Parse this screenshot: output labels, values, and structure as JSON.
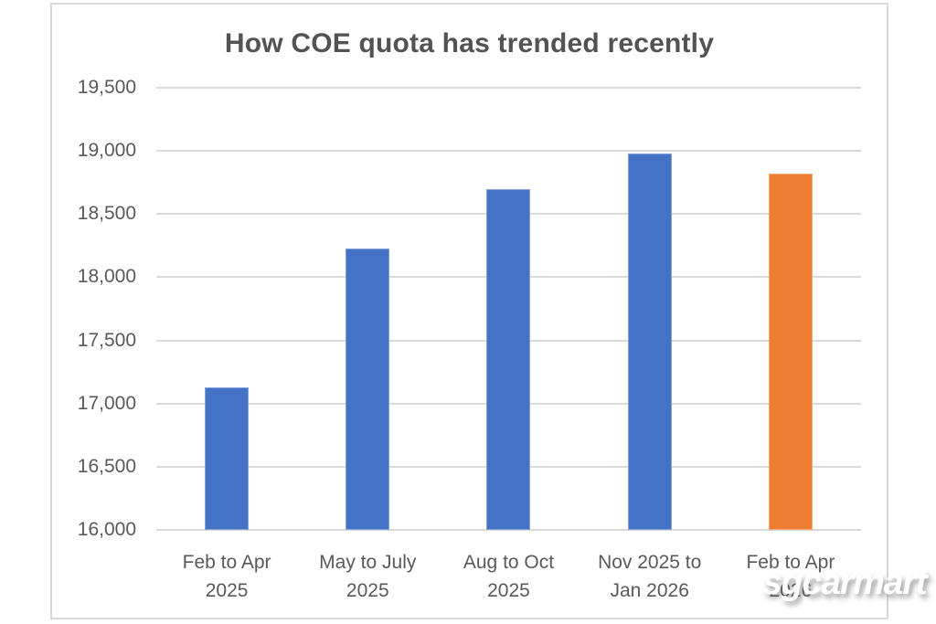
{
  "watermark": {
    "text": "sgcarmart"
  },
  "chart_data": {
    "type": "bar",
    "title": "How COE quota has trended recently",
    "xlabel": "",
    "ylabel": "",
    "ylim": [
      16000,
      19500
    ],
    "grid": true,
    "legend": false,
    "categories": [
      {
        "lines": [
          "Feb to Apr",
          "2025"
        ]
      },
      {
        "lines": [
          "May to July",
          "2025"
        ]
      },
      {
        "lines": [
          "Aug to Oct",
          "2025"
        ]
      },
      {
        "lines": [
          "Nov 2025 to",
          "Jan 2026"
        ]
      },
      {
        "lines": [
          "Feb to Apr",
          "2026"
        ]
      }
    ],
    "values": [
      17130,
      18230,
      18700,
      18980,
      18820
    ],
    "colors": [
      "#4472c4",
      "#4472c4",
      "#4472c4",
      "#4472c4",
      "#ed7d31"
    ],
    "accent_colors": {
      "blue": "#4472c4",
      "orange": "#ed7d31",
      "gridline": "#d9d9d9",
      "text": "#595959"
    },
    "yticks": [
      {
        "value": 19500,
        "label": "19,500"
      },
      {
        "value": 19000,
        "label": "19,000"
      },
      {
        "value": 18500,
        "label": "18,500"
      },
      {
        "value": 18000,
        "label": "18,000"
      },
      {
        "value": 17500,
        "label": "17,500"
      },
      {
        "value": 17000,
        "label": "17,000"
      },
      {
        "value": 16500,
        "label": "16,500"
      },
      {
        "value": 16000,
        "label": "16,000"
      }
    ]
  }
}
